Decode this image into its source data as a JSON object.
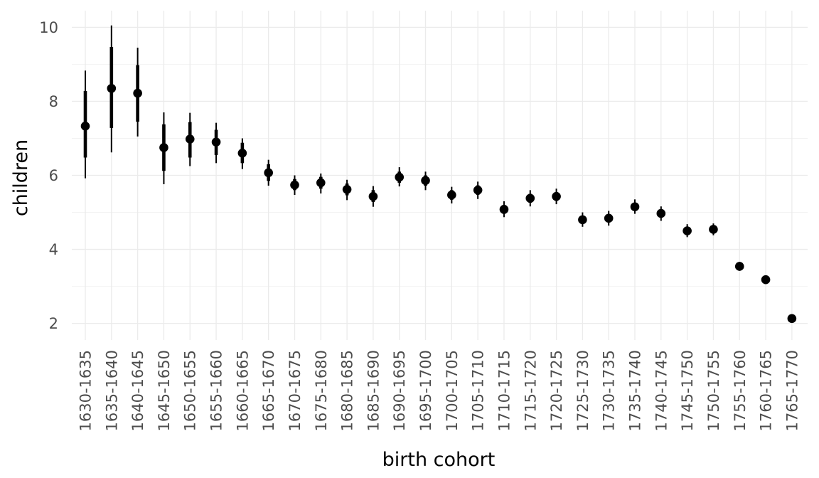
{
  "chart_data": {
    "type": "scatter",
    "xlabel": "birth cohort",
    "ylabel": "children",
    "ylim": [
      1.55,
      10.45
    ],
    "yticks": [
      2,
      4,
      6,
      8,
      10
    ],
    "grid": true,
    "categories": [
      "1630-1635",
      "1635-1640",
      "1640-1645",
      "1645-1650",
      "1650-1655",
      "1655-1660",
      "1660-1665",
      "1665-1670",
      "1670-1675",
      "1675-1680",
      "1680-1685",
      "1685-1690",
      "1690-1695",
      "1695-1700",
      "1700-1705",
      "1705-1710",
      "1710-1715",
      "1715-1720",
      "1720-1725",
      "1725-1730",
      "1730-1735",
      "1735-1740",
      "1740-1745",
      "1745-1750",
      "1750-1755",
      "1755-1760",
      "1760-1765",
      "1765-1770"
    ],
    "series": [
      {
        "values": [
          7.33,
          8.35,
          8.22,
          6.75,
          6.98,
          6.9,
          6.6,
          6.07,
          5.74,
          5.8,
          5.62,
          5.43,
          5.95,
          5.86,
          5.47,
          5.6,
          5.08,
          5.38,
          5.43,
          4.8,
          4.84,
          5.15,
          4.97,
          4.5,
          4.54,
          3.54,
          3.18,
          2.13
        ],
        "interval_inner": [
          [
            6.48,
            8.28
          ],
          [
            7.28,
            9.47
          ],
          [
            7.45,
            8.98
          ],
          [
            6.12,
            7.38
          ],
          [
            6.48,
            7.44
          ],
          [
            6.55,
            7.23
          ],
          [
            6.33,
            6.88
          ],
          [
            5.85,
            6.3
          ],
          [
            5.6,
            5.9
          ],
          [
            5.64,
            5.96
          ],
          [
            5.46,
            5.78
          ],
          [
            5.28,
            5.6
          ],
          [
            5.8,
            6.1
          ],
          [
            5.72,
            6.0
          ],
          [
            5.34,
            5.6
          ],
          [
            5.47,
            5.73
          ],
          [
            4.96,
            5.2
          ],
          [
            5.26,
            5.5
          ],
          [
            5.31,
            5.55
          ],
          [
            4.69,
            4.91
          ],
          [
            4.73,
            4.95
          ],
          [
            5.04,
            5.26
          ],
          [
            4.86,
            5.08
          ],
          [
            4.41,
            4.6
          ],
          [
            4.46,
            4.62
          ],
          [
            3.47,
            3.61
          ],
          [
            3.12,
            3.24
          ],
          [
            2.08,
            2.18
          ]
        ],
        "interval_outer": [
          [
            5.92,
            8.83
          ],
          [
            6.62,
            10.05
          ],
          [
            7.05,
            9.45
          ],
          [
            5.76,
            7.7
          ],
          [
            6.25,
            7.69
          ],
          [
            6.33,
            7.42
          ],
          [
            6.17,
            7.0
          ],
          [
            5.72,
            6.42
          ],
          [
            5.47,
            6.0
          ],
          [
            5.51,
            6.05
          ],
          [
            5.33,
            5.88
          ],
          [
            5.15,
            5.71
          ],
          [
            5.7,
            6.22
          ],
          [
            5.6,
            6.1
          ],
          [
            5.24,
            5.69
          ],
          [
            5.36,
            5.83
          ],
          [
            4.87,
            5.3
          ],
          [
            5.16,
            5.6
          ],
          [
            5.22,
            5.64
          ],
          [
            4.61,
            5.0
          ],
          [
            4.64,
            5.04
          ],
          [
            4.96,
            5.35
          ],
          [
            4.77,
            5.16
          ],
          [
            4.33,
            4.68
          ],
          [
            4.38,
            4.7
          ],
          [
            3.42,
            3.66
          ],
          [
            3.08,
            3.28
          ],
          [
            2.05,
            2.21
          ]
        ]
      }
    ]
  }
}
